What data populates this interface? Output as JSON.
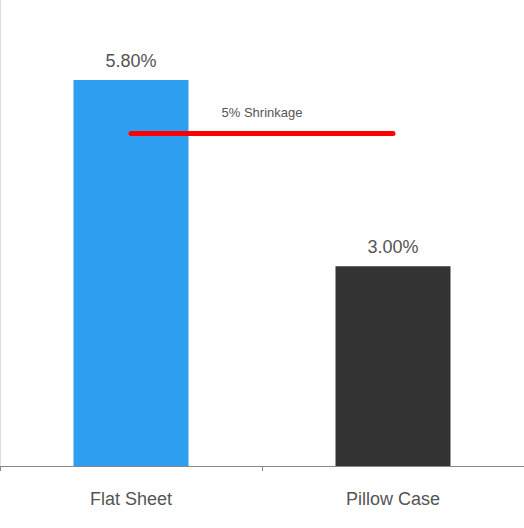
{
  "chart_data": {
    "type": "bar",
    "categories": [
      "Flat Sheet",
      "Pillow Case"
    ],
    "values": [
      5.8,
      3.0
    ],
    "value_labels": [
      "5.80%",
      "3.00%"
    ],
    "colors": [
      "#2e9ef0",
      "#333333"
    ],
    "data_labels": true,
    "tick_labels": "x",
    "grid": false,
    "ylim": [
      0,
      7
    ],
    "reference_line": {
      "value": 5,
      "label": "5% Shrinkage",
      "color": "#ff0000"
    }
  }
}
